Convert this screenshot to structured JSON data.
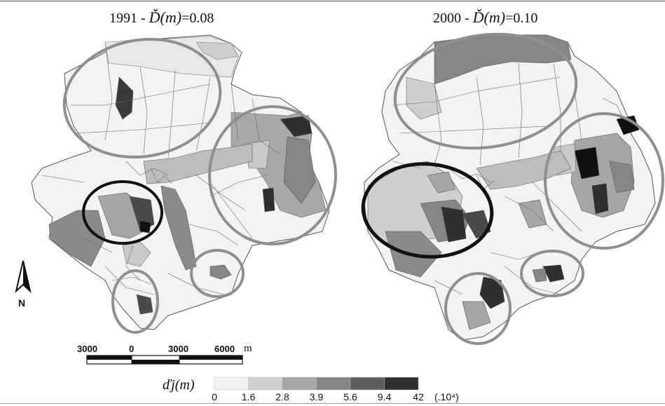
{
  "maps": [
    {
      "year": "1991",
      "separator": " - ",
      "function_label": "Ď(m)",
      "value_text": "=0.08"
    },
    {
      "year": "2000",
      "separator": " - ",
      "function_label": "Ď(m)",
      "value_text": "=0.10"
    }
  ],
  "north_arrow": {
    "label": "N"
  },
  "scale_bar": {
    "tick_labels": [
      "3000",
      "0",
      "3000",
      "6000"
    ],
    "unit": "m"
  },
  "legend": {
    "variable_label": "ďj(m)",
    "breaks": [
      "0",
      "1.6",
      "2.8",
      "3.9",
      "5.6",
      "9.4",
      "42"
    ],
    "unit": "(.10⁴)",
    "colors": [
      "#f2f2f2",
      "#cfcfcf",
      "#a6a6a6",
      "#868686",
      "#5d5d5d",
      "#2f2f2f"
    ]
  },
  "colors": {
    "grey_circle": "#8f8f8f",
    "black_circle": "#111111",
    "boundary": "#5a5a5a"
  }
}
